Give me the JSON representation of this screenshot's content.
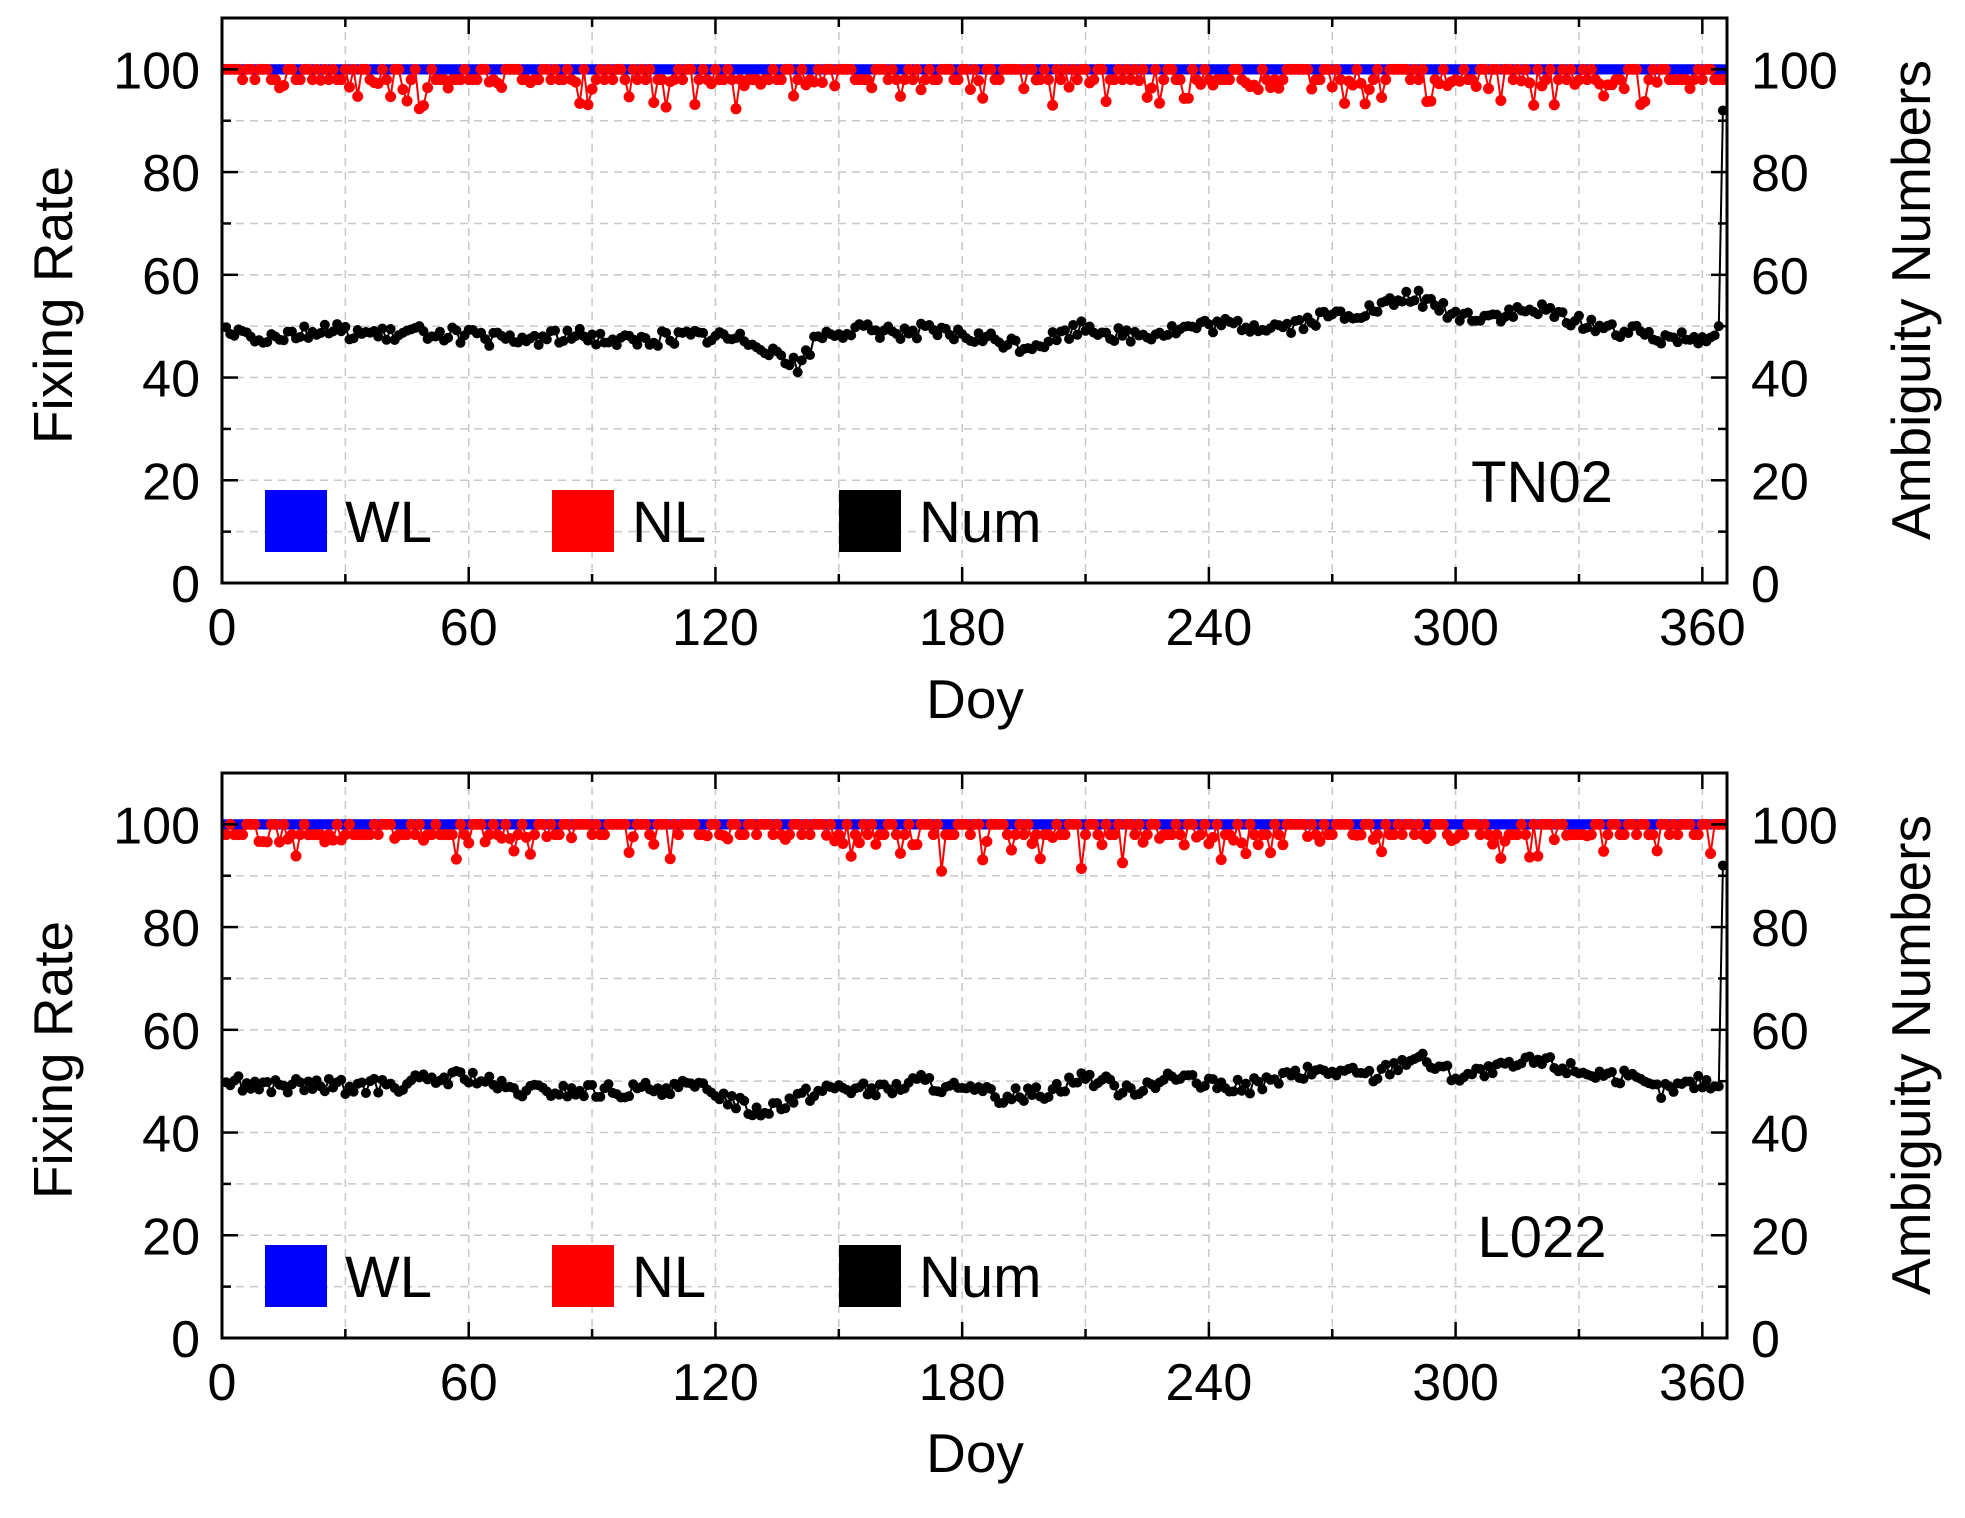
{
  "colors": {
    "wl": "#0000ff",
    "nl": "#ff0000",
    "num": "#000000",
    "grid": "#c8c8c8",
    "axis": "#000000"
  },
  "chart_data": [
    {
      "type": "line",
      "station": "TN02",
      "xlabel": "Doy",
      "ylabel": "Fixing Rate",
      "y2label": "Ambiguity Numbers",
      "xlim": [
        0,
        366
      ],
      "ylim": [
        0,
        110
      ],
      "y2lim": [
        0,
        110
      ],
      "xticks": [
        "0",
        "60",
        "120",
        "180",
        "240",
        "300",
        "360"
      ],
      "yticks": [
        "0",
        "20",
        "40",
        "60",
        "80",
        "100"
      ],
      "y2ticks": [
        "0",
        "20",
        "40",
        "60",
        "80",
        "100"
      ],
      "grid": true,
      "legend": [
        "WL",
        "NL",
        "Num"
      ],
      "legend_position": "bottom-left",
      "series_summary": {
        "WL": "approximately 100 on all days",
        "NL": "about 96-100, occasional dips to about 92",
        "Num": "about 46-52 most of the year, rising to about 55 near day 290, about 42 near day 140, jumping to about 92 at day 365"
      },
      "series": [
        {
          "name": "Num",
          "x": [
            0,
            10,
            20,
            30,
            40,
            50,
            60,
            70,
            80,
            90,
            100,
            110,
            120,
            130,
            135,
            140,
            145,
            150,
            160,
            170,
            180,
            190,
            195,
            200,
            210,
            220,
            230,
            240,
            250,
            260,
            270,
            280,
            290,
            300,
            310,
            320,
            330,
            340,
            350,
            360,
            364,
            365
          ],
          "values": [
            50,
            48,
            49,
            49,
            48,
            49,
            48,
            47,
            48,
            48,
            47,
            48,
            48,
            47,
            45,
            42,
            48,
            49,
            49,
            49,
            48,
            47,
            46,
            47,
            50,
            48,
            49,
            50,
            50,
            50,
            52,
            53,
            56,
            52,
            52,
            53,
            51,
            49,
            48,
            48,
            50,
            92
          ]
        },
        {
          "name": "WL",
          "x": [
            0,
            365
          ],
          "values": [
            100,
            100
          ]
        },
        {
          "name": "NL",
          "x": [
            0,
            10,
            20,
            40,
            50,
            70,
            100,
            122,
            150,
            180,
            200,
            220,
            260,
            300,
            320,
            340,
            365
          ],
          "values": [
            99,
            97,
            98,
            99,
            93,
            98,
            96,
            92,
            97,
            98,
            95,
            99,
            97,
            98,
            93,
            99,
            97
          ]
        }
      ]
    },
    {
      "type": "line",
      "station": "L022",
      "xlabel": "Doy",
      "ylabel": "Fixing Rate",
      "y2label": "Ambiguity Numbers",
      "xlim": [
        0,
        366
      ],
      "ylim": [
        0,
        110
      ],
      "y2lim": [
        0,
        110
      ],
      "xticks": [
        "0",
        "60",
        "120",
        "180",
        "240",
        "300",
        "360"
      ],
      "yticks": [
        "0",
        "20",
        "40",
        "60",
        "80",
        "100"
      ],
      "y2ticks": [
        "0",
        "20",
        "40",
        "60",
        "80",
        "100"
      ],
      "grid": true,
      "legend": [
        "WL",
        "NL",
        "Num"
      ],
      "legend_position": "bottom-left",
      "series_summary": {
        "WL": "approximately 100 on all days",
        "NL": "about 94-100, dips to about 92 near days 175 and 210",
        "Num": "about 45-52 most of the year, about 44 near day 130, rising to about 55 near day 290, jumping to about 92 at day 365"
      },
      "series": [
        {
          "name": "Num",
          "x": [
            0,
            10,
            20,
            30,
            40,
            50,
            60,
            70,
            80,
            90,
            100,
            110,
            120,
            130,
            140,
            150,
            160,
            170,
            180,
            190,
            200,
            210,
            220,
            230,
            240,
            250,
            260,
            270,
            280,
            290,
            300,
            310,
            320,
            330,
            340,
            350,
            360,
            364,
            365
          ],
          "values": [
            50,
            49,
            49,
            49,
            49,
            50,
            51,
            48,
            48,
            48,
            48,
            49,
            48,
            44,
            47,
            49,
            48,
            50,
            48,
            47,
            48,
            51,
            48,
            51,
            49,
            49,
            51,
            52,
            51,
            55,
            51,
            52,
            54,
            52,
            51,
            48,
            50,
            49,
            92
          ]
        },
        {
          "name": "WL",
          "x": [
            0,
            365
          ],
          "values": [
            100,
            100
          ]
        },
        {
          "name": "NL",
          "x": [
            0,
            20,
            40,
            60,
            80,
            100,
            120,
            140,
            160,
            175,
            190,
            210,
            230,
            260,
            290,
            310,
            340,
            365
          ],
          "values": [
            98,
            96,
            99,
            98,
            99,
            97,
            98,
            96,
            97,
            92,
            96,
            92,
            97,
            98,
            96,
            95,
            98,
            97
          ]
        }
      ]
    }
  ]
}
